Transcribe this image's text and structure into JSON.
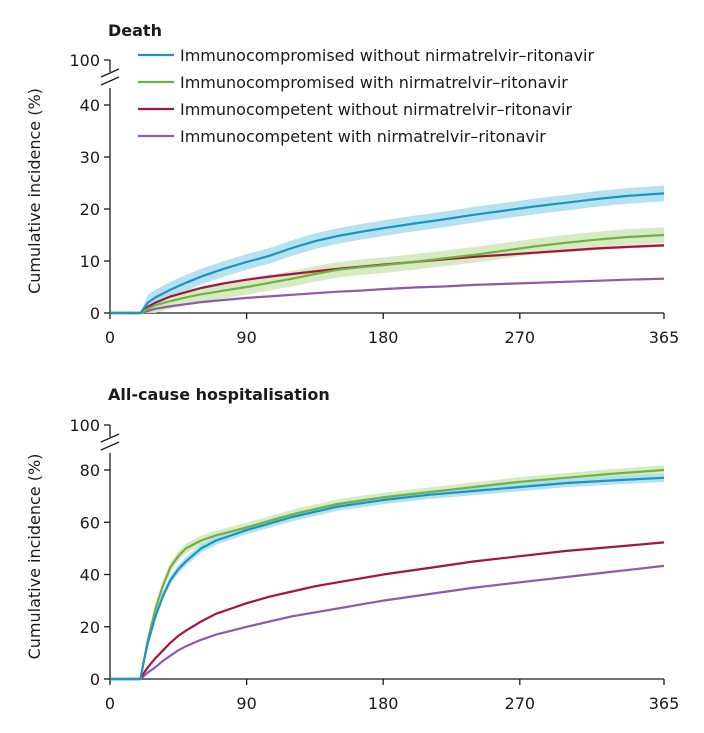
{
  "legend": [
    {
      "label": "Immunocompromised without nirmatrelvir–ritonavir",
      "color": "#1a95c1"
    },
    {
      "label": "Immunocompromised with nirmatrelvir–ritonavir",
      "color": "#6db33f"
    },
    {
      "label": "Immunocompetent without nirmatrelvir–ritonavir",
      "color": "#a3173f"
    },
    {
      "label": "Immunocompetent with nirmatrelvir–ritonavir",
      "color": "#8e5ba8"
    }
  ],
  "band_colors": {
    "Immunocompromised without nirmatrelvir–ritonavir": "#a8dcee",
    "Immunocompromised with nirmatrelvir–ritonavir": "#cfe6b8",
    "Immunocompetent without nirmatrelvir–ritonavir": "#f3c9c2",
    "Immunocompetent with nirmatrelvir–ritonavir": "#dccbe6"
  },
  "chart_data": [
    {
      "type": "line",
      "title": "Death",
      "xlabel": "",
      "ylabel": "Cumulative incidence (%)",
      "xlim": [
        0,
        365
      ],
      "ylim": [
        0,
        40
      ],
      "y_break_top": 100,
      "xticks": [
        0,
        90,
        180,
        270,
        365
      ],
      "yticks": [
        0,
        10,
        20,
        30,
        40
      ],
      "x": [
        0,
        20,
        25,
        30,
        40,
        50,
        60,
        75,
        90,
        105,
        120,
        135,
        150,
        165,
        180,
        200,
        220,
        240,
        260,
        280,
        300,
        320,
        340,
        365
      ],
      "series": [
        {
          "name": "Immunocompromised without nirmatrelvir–ritonavir",
          "values": [
            0,
            0,
            2,
            3,
            4.5,
            5.8,
            7,
            8.5,
            9.8,
            11,
            12.5,
            13.8,
            14.8,
            15.6,
            16.3,
            17.2,
            18,
            18.9,
            19.7,
            20.5,
            21.2,
            21.9,
            22.5,
            23
          ],
          "ci": 1.5
        },
        {
          "name": "Immunocompromised with nirmatrelvir–ritonavir",
          "values": [
            0,
            0,
            0.8,
            1.5,
            2.3,
            3,
            3.6,
            4.3,
            5,
            5.8,
            6.6,
            7.5,
            8.3,
            8.8,
            9.2,
            9.8,
            10.5,
            11.2,
            12,
            12.8,
            13.5,
            14.1,
            14.6,
            15
          ],
          "ci": 1.5
        },
        {
          "name": "Immunocompetent without nirmatrelvir–ritonavir",
          "values": [
            0,
            0,
            1.2,
            2,
            3.2,
            4,
            4.8,
            5.7,
            6.4,
            7,
            7.5,
            8,
            8.5,
            8.9,
            9.3,
            9.8,
            10.3,
            10.8,
            11.2,
            11.6,
            12,
            12.4,
            12.7,
            13
          ],
          "ci": 0.3
        },
        {
          "name": "Immunocompetent with nirmatrelvir–ritonavir",
          "values": [
            0,
            0,
            0.4,
            0.8,
            1.3,
            1.7,
            2.1,
            2.5,
            2.9,
            3.2,
            3.5,
            3.8,
            4.1,
            4.3,
            4.6,
            4.9,
            5.1,
            5.4,
            5.6,
            5.8,
            6,
            6.2,
            6.4,
            6.6
          ],
          "ci": 0.2
        }
      ]
    },
    {
      "type": "line",
      "title": "All-cause hospitalisation",
      "xlabel": "",
      "ylabel": "Cumulative incidence (%)",
      "xlim": [
        0,
        365
      ],
      "ylim": [
        0,
        80
      ],
      "y_break_top": 100,
      "xticks": [
        0,
        90,
        180,
        270,
        365
      ],
      "yticks": [
        0,
        20,
        40,
        60,
        80
      ],
      "x": [
        0,
        20,
        22,
        25,
        30,
        35,
        40,
        45,
        50,
        60,
        70,
        80,
        90,
        105,
        120,
        135,
        150,
        180,
        210,
        240,
        270,
        300,
        330,
        365
      ],
      "series": [
        {
          "name": "Immunocompromised without nirmatrelvir–ritonavir",
          "values": [
            0,
            0,
            6,
            14,
            24,
            32,
            38,
            42,
            45,
            50,
            53,
            55,
            57,
            59.5,
            62,
            64,
            66,
            68.5,
            70.5,
            72,
            73.5,
            75,
            76,
            77
          ],
          "ci": 1.6
        },
        {
          "name": "Immunocompromised with nirmatrelvir–ritonavir",
          "values": [
            0,
            0,
            6,
            15,
            27,
            36,
            43,
            47,
            50,
            53,
            55,
            56.5,
            58,
            60.5,
            63,
            65,
            67,
            69.5,
            71.5,
            73.5,
            75.5,
            77,
            78.5,
            80
          ],
          "ci": 1.8
        },
        {
          "name": "Immunocompetent without nirmatrelvir–ritonavir",
          "values": [
            0,
            0,
            2,
            4.5,
            8,
            11,
            14,
            16.5,
            18.5,
            22,
            25,
            27,
            29,
            31.5,
            33.5,
            35.5,
            37,
            40,
            42.5,
            45,
            47,
            49,
            50.5,
            52.3
          ],
          "ci": 0.4
        },
        {
          "name": "Immunocompetent with nirmatrelvir–ritonavir",
          "values": [
            0,
            0,
            1,
            2.5,
            4.5,
            7,
            9,
            11,
            12.5,
            15,
            17,
            18.5,
            20,
            22,
            24,
            25.5,
            27,
            30,
            32.5,
            35,
            37,
            39,
            41,
            43.3
          ],
          "ci": 0.4
        }
      ]
    }
  ]
}
